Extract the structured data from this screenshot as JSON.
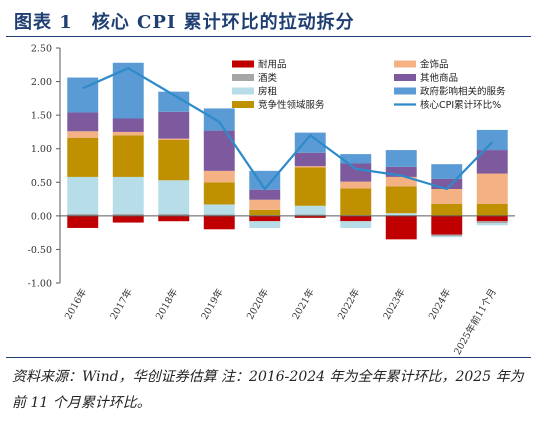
{
  "figure": {
    "title": "图表 1　核心 CPI 累计环比的拉动拆分",
    "source_note": "资料来源：Wind，华创证券估算 注：2016-2024 年为全年累计环比，2025 年为前 11 个月累计环比。"
  },
  "chart_data": {
    "type": "bar",
    "stacked": true,
    "title": "",
    "xlabel": "",
    "ylabel": "",
    "ylim": [
      -1.0,
      2.5
    ],
    "yticks": [
      "-1.00",
      "-0.50",
      "0.00",
      "0.50",
      "1.00",
      "1.50",
      "2.00",
      "2.50"
    ],
    "grid": false,
    "legend_placement": "top-right, two columns",
    "categories": [
      "2016年",
      "2017年",
      "2018年",
      "2019年",
      "2020年",
      "2021年",
      "2022年",
      "2023年",
      "2024年",
      "2025年前11个月"
    ],
    "series": [
      {
        "name": "耐用品",
        "color": "#c00000",
        "values": [
          -0.18,
          -0.1,
          -0.08,
          -0.2,
          -0.08,
          -0.03,
          -0.08,
          -0.35,
          -0.28,
          -0.08
        ]
      },
      {
        "name": "酒类",
        "color": "#a6a6a6",
        "values": [
          0.03,
          0.03,
          0.03,
          0.02,
          0.01,
          0.02,
          0.01,
          0.01,
          -0.02,
          -0.03
        ]
      },
      {
        "name": "房租",
        "color": "#b7dde8",
        "values": [
          0.55,
          0.55,
          0.5,
          0.15,
          -0.1,
          0.13,
          -0.1,
          0.03,
          -0.02,
          -0.03
        ]
      },
      {
        "name": "竞争性领域服务",
        "color": "#bf9000",
        "values": [
          0.58,
          0.62,
          0.6,
          0.33,
          0.08,
          0.57,
          0.4,
          0.4,
          0.18,
          0.18
        ]
      },
      {
        "name": "金饰品",
        "color": "#f4b183",
        "values": [
          0.1,
          0.05,
          0.02,
          0.17,
          0.15,
          0.02,
          0.1,
          0.14,
          0.22,
          0.45
        ]
      },
      {
        "name": "其他商品",
        "color": "#7d5a9e",
        "values": [
          0.28,
          0.2,
          0.4,
          0.6,
          0.15,
          0.2,
          0.27,
          0.15,
          0.15,
          0.35
        ]
      },
      {
        "name": "政府影响相关的服务",
        "color": "#5b9bd5",
        "values": [
          0.52,
          0.83,
          0.3,
          0.33,
          0.28,
          0.3,
          0.14,
          0.25,
          0.22,
          0.3
        ]
      },
      {
        "name": "核心CPI累计环比%",
        "type": "line",
        "color": "#2e8bc9",
        "values": [
          1.9,
          2.2,
          1.8,
          1.4,
          0.4,
          1.2,
          0.7,
          0.6,
          0.4,
          1.1
        ]
      }
    ]
  }
}
